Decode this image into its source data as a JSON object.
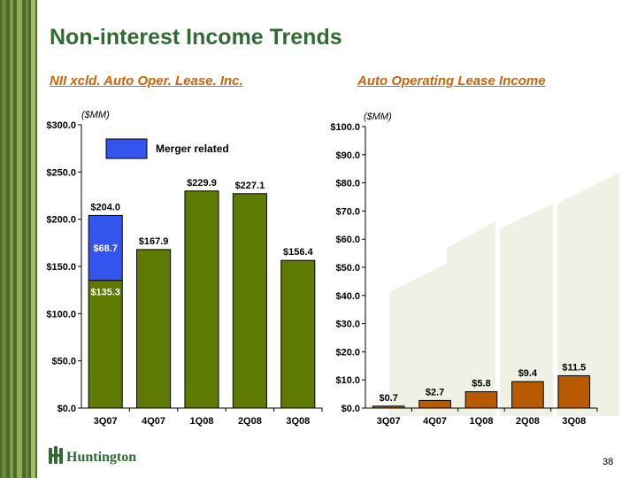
{
  "slide": {
    "title": "Non-interest Income Trends",
    "page_number": "38",
    "logo_text": "Huntington"
  },
  "colors": {
    "accent_green": "#5e7a00",
    "merger_blue": "#3355ee",
    "lease_orange": "#b85a00",
    "title_green": "#2f6b32",
    "subtitle_orange": "#c8650a"
  },
  "chart_data": [
    {
      "type": "bar",
      "subtitle": "NII xcld. Auto Oper. Lease. Inc.",
      "unit_label": "($MM)",
      "categories": [
        "3Q07",
        "4Q07",
        "1Q08",
        "2Q08",
        "3Q08"
      ],
      "series": [
        {
          "values": [
            135.3,
            167.9,
            229.9,
            227.1,
            156.4
          ]
        },
        {
          "name": "Merger related",
          "values": [
            68.7,
            0,
            0,
            0,
            0
          ]
        }
      ],
      "bar_labels": [
        "$135.3",
        "$167.9",
        "$229.9",
        "$227.1",
        "$156.4"
      ],
      "merger_labels": [
        "$68.7",
        "",
        "",
        "",
        ""
      ],
      "totals": [
        204.0,
        null,
        null,
        null,
        null
      ],
      "total_labels": [
        "$204.0",
        "",
        "",
        "",
        ""
      ],
      "ylim": [
        0,
        300
      ],
      "yticks": [
        "$0.0",
        "$50.0",
        "$100.0",
        "$150.0",
        "$200.0",
        "$250.0",
        "$300.0"
      ],
      "legend": {
        "label": "Merger related",
        "position": "top-left"
      }
    },
    {
      "type": "bar",
      "subtitle": "Auto Operating Lease Income",
      "unit_label": "($MM)",
      "categories": [
        "3Q07",
        "4Q07",
        "1Q08",
        "2Q08",
        "3Q08"
      ],
      "values": [
        0.7,
        2.7,
        5.8,
        9.4,
        11.5
      ],
      "bar_labels": [
        "$0.7",
        "$2.7",
        "$5.8",
        "$9.4",
        "$11.5"
      ],
      "ylim": [
        0,
        100
      ],
      "yticks": [
        "$0.0",
        "$10.0",
        "$20.0",
        "$30.0",
        "$40.0",
        "$50.0",
        "$60.0",
        "$70.0",
        "$80.0",
        "$90.0",
        "$100.0"
      ]
    }
  ]
}
